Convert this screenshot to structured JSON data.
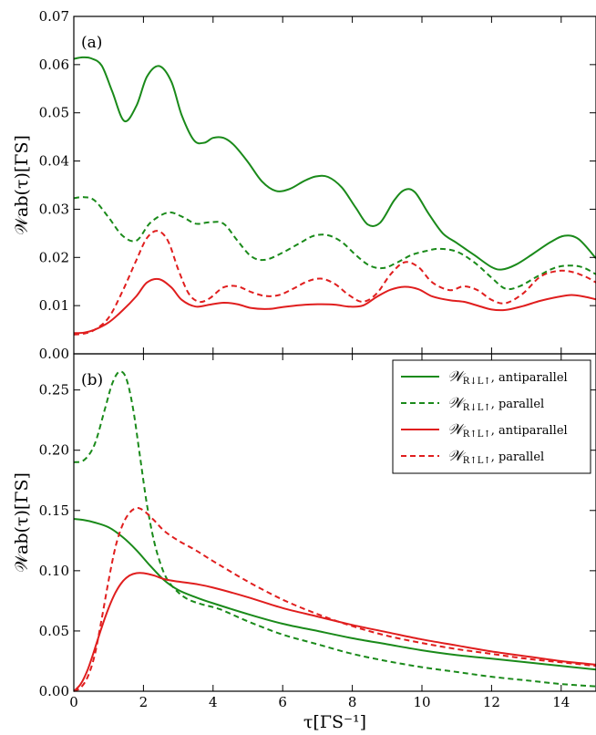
{
  "chart_data": [
    {
      "type": "line",
      "panel_label": "(a)",
      "ylabel": "𝒲ab(τ)[ΓS]",
      "xlabel": "",
      "xlim": [
        0,
        15
      ],
      "ylim": [
        0,
        0.07
      ],
      "xticks": [
        "",
        "",
        "",
        "",
        "",
        "",
        "",
        ""
      ],
      "yticks": [
        "0.00",
        "0.01",
        "0.02",
        "0.03",
        "0.04",
        "0.05",
        "0.06",
        "0.07"
      ],
      "ytick_values": [
        0,
        0.01,
        0.02,
        0.03,
        0.04,
        0.05,
        0.06,
        0.07
      ],
      "xtick_values": [
        0,
        2,
        4,
        6,
        8,
        10,
        12,
        14
      ],
      "series": [
        {
          "color": "#1a8a1a",
          "dash": "solid",
          "x": [
            0,
            0.25,
            0.5,
            0.8,
            1.1,
            1.45,
            1.8,
            2.1,
            2.45,
            2.8,
            3.1,
            3.45,
            3.75,
            4.0,
            4.3,
            4.6,
            5.0,
            5.4,
            5.8,
            6.2,
            6.6,
            6.95,
            7.3,
            7.7,
            8.1,
            8.45,
            8.8,
            9.2,
            9.5,
            9.8,
            10.2,
            10.6,
            11.0,
            11.5,
            12.0,
            12.3,
            12.7,
            13.2,
            13.7,
            14.1,
            14.5,
            15.0
          ],
          "y": [
            0.0612,
            0.0615,
            0.0613,
            0.0598,
            0.0545,
            0.0483,
            0.0515,
            0.0575,
            0.0597,
            0.0565,
            0.0495,
            0.0443,
            0.0438,
            0.0448,
            0.0448,
            0.0433,
            0.0398,
            0.0358,
            0.0338,
            0.0342,
            0.0358,
            0.0368,
            0.0367,
            0.0345,
            0.0303,
            0.0268,
            0.0272,
            0.0318,
            0.034,
            0.0335,
            0.029,
            0.025,
            0.023,
            0.0205,
            0.018,
            0.0175,
            0.0185,
            0.0208,
            0.0232,
            0.0245,
            0.0238,
            0.0198
          ]
        },
        {
          "color": "#1a8a1a",
          "dash": "dashed",
          "x": [
            0,
            0.3,
            0.6,
            1.0,
            1.4,
            1.8,
            2.2,
            2.7,
            3.1,
            3.5,
            3.9,
            4.3,
            4.7,
            5.1,
            5.5,
            6.0,
            6.5,
            6.9,
            7.3,
            7.7,
            8.1,
            8.5,
            8.9,
            9.3,
            9.7,
            10.1,
            10.5,
            11.0,
            11.5,
            12.0,
            12.4,
            12.8,
            13.3,
            13.8,
            14.2,
            14.6,
            15.0
          ],
          "y": [
            0.0323,
            0.0325,
            0.0318,
            0.0283,
            0.0245,
            0.0235,
            0.0272,
            0.0293,
            0.0285,
            0.027,
            0.0273,
            0.027,
            0.0235,
            0.0202,
            0.0195,
            0.021,
            0.023,
            0.0245,
            0.0246,
            0.0232,
            0.0205,
            0.0183,
            0.0178,
            0.019,
            0.0205,
            0.0213,
            0.0218,
            0.0212,
            0.019,
            0.0158,
            0.0135,
            0.014,
            0.016,
            0.0178,
            0.0183,
            0.018,
            0.0165
          ]
        },
        {
          "color": "#e01e1e",
          "dash": "solid",
          "x": [
            0,
            0.3,
            0.6,
            1.0,
            1.4,
            1.8,
            2.1,
            2.45,
            2.8,
            3.1,
            3.5,
            3.9,
            4.3,
            4.7,
            5.1,
            5.6,
            6.0,
            6.5,
            7.0,
            7.5,
            7.9,
            8.3,
            8.7,
            9.1,
            9.5,
            9.9,
            10.3,
            10.8,
            11.2,
            11.6,
            12.0,
            12.4,
            12.9,
            13.4,
            13.9,
            14.3,
            14.7,
            15.0
          ],
          "y": [
            0.0043,
            0.0044,
            0.005,
            0.0065,
            0.009,
            0.012,
            0.0148,
            0.0155,
            0.0138,
            0.0112,
            0.0098,
            0.0102,
            0.0106,
            0.0103,
            0.0095,
            0.0093,
            0.0097,
            0.0101,
            0.0103,
            0.0102,
            0.0098,
            0.01,
            0.0118,
            0.0133,
            0.0139,
            0.0134,
            0.0119,
            0.0111,
            0.0108,
            0.01,
            0.0092,
            0.0091,
            0.0099,
            0.011,
            0.0118,
            0.0122,
            0.0118,
            0.0113
          ]
        },
        {
          "color": "#e01e1e",
          "dash": "dashed",
          "x": [
            0,
            0.3,
            0.6,
            1.0,
            1.4,
            1.8,
            2.1,
            2.4,
            2.7,
            3.0,
            3.3,
            3.6,
            3.9,
            4.3,
            4.7,
            5.1,
            5.5,
            5.9,
            6.3,
            6.7,
            7.1,
            7.5,
            7.9,
            8.3,
            8.7,
            9.1,
            9.5,
            9.9,
            10.3,
            10.8,
            11.2,
            11.6,
            12.0,
            12.4,
            12.9,
            13.4,
            13.9,
            14.3,
            14.7,
            15.0
          ],
          "y": [
            0.004,
            0.0042,
            0.005,
            0.0075,
            0.013,
            0.0195,
            0.024,
            0.0255,
            0.0235,
            0.0175,
            0.0125,
            0.0108,
            0.0115,
            0.0138,
            0.014,
            0.0128,
            0.012,
            0.0122,
            0.0135,
            0.015,
            0.0156,
            0.0145,
            0.0122,
            0.0108,
            0.0125,
            0.0165,
            0.019,
            0.018,
            0.0148,
            0.0132,
            0.014,
            0.0132,
            0.0112,
            0.0105,
            0.0125,
            0.016,
            0.0172,
            0.017,
            0.016,
            0.0148
          ]
        }
      ]
    },
    {
      "type": "line",
      "panel_label": "(b)",
      "ylabel": "𝒲ab(τ)[ΓS]",
      "xlabel": "τ[ΓS⁻¹]",
      "xlim": [
        0,
        15
      ],
      "ylim": [
        0,
        0.28
      ],
      "xticks": [
        "0",
        "2",
        "4",
        "6",
        "8",
        "10",
        "12",
        "14"
      ],
      "xtick_values": [
        0,
        2,
        4,
        6,
        8,
        10,
        12,
        14
      ],
      "yticks": [
        "0.00",
        "0.05",
        "0.10",
        "0.15",
        "0.20",
        "0.25"
      ],
      "ytick_values": [
        0,
        0.05,
        0.1,
        0.15,
        0.2,
        0.25
      ],
      "legend": {
        "placement": "top-right",
        "entries": [
          {
            "main": "𝒲",
            "sub": "R↓L↑",
            "text": ", antiparallel"
          },
          {
            "main": "𝒲",
            "sub": "R↓L↑",
            "text": ", parallel"
          },
          {
            "main": "𝒲",
            "sub": "R↑L↑",
            "text": ", antiparallel"
          },
          {
            "main": "𝒲",
            "sub": "R↑L↑",
            "text": ", parallel"
          }
        ]
      },
      "series": [
        {
          "color": "#1a8a1a",
          "dash": "solid",
          "x": [
            0,
            0.3,
            0.6,
            1.0,
            1.4,
            1.8,
            2.2,
            2.6,
            3.0,
            3.5,
            4.0,
            5.0,
            6.0,
            7.0,
            8.0,
            9.0,
            10.0,
            11.0,
            12.0,
            13.0,
            14.0,
            15.0
          ],
          "y": [
            0.143,
            0.142,
            0.14,
            0.136,
            0.128,
            0.117,
            0.104,
            0.092,
            0.084,
            0.078,
            0.073,
            0.064,
            0.056,
            0.05,
            0.044,
            0.039,
            0.034,
            0.03,
            0.027,
            0.024,
            0.021,
            0.018
          ]
        },
        {
          "color": "#1a8a1a",
          "dash": "dashed",
          "x": [
            0,
            0.3,
            0.6,
            0.9,
            1.1,
            1.3,
            1.5,
            1.7,
            1.9,
            2.1,
            2.3,
            2.5,
            2.7,
            3.0,
            3.3,
            3.7,
            4.2,
            5.0,
            6.0,
            7.0,
            8.0,
            9.0,
            10.0,
            11.0,
            12.0,
            13.0,
            14.0,
            15.0
          ],
          "y": [
            0.19,
            0.192,
            0.205,
            0.235,
            0.255,
            0.265,
            0.26,
            0.235,
            0.195,
            0.155,
            0.125,
            0.105,
            0.092,
            0.082,
            0.076,
            0.072,
            0.068,
            0.058,
            0.047,
            0.039,
            0.031,
            0.025,
            0.02,
            0.016,
            0.012,
            0.009,
            0.006,
            0.004
          ]
        },
        {
          "color": "#e01e1e",
          "dash": "solid",
          "x": [
            0,
            0.2,
            0.4,
            0.6,
            0.8,
            1.0,
            1.2,
            1.4,
            1.6,
            1.8,
            2.0,
            2.3,
            2.6,
            3.0,
            3.5,
            4.0,
            5.0,
            6.0,
            7.0,
            8.0,
            9.0,
            10.0,
            11.0,
            12.0,
            13.0,
            14.0,
            15.0
          ],
          "y": [
            0.0,
            0.006,
            0.018,
            0.035,
            0.053,
            0.069,
            0.082,
            0.091,
            0.096,
            0.098,
            0.098,
            0.096,
            0.093,
            0.091,
            0.089,
            0.086,
            0.078,
            0.069,
            0.062,
            0.055,
            0.049,
            0.043,
            0.038,
            0.033,
            0.029,
            0.025,
            0.022
          ]
        },
        {
          "color": "#e01e1e",
          "dash": "dashed",
          "x": [
            0,
            0.2,
            0.4,
            0.6,
            0.8,
            1.0,
            1.2,
            1.4,
            1.6,
            1.8,
            2.0,
            2.3,
            2.6,
            3.0,
            3.5,
            4.0,
            5.0,
            6.0,
            7.0,
            8.0,
            9.0,
            10.0,
            11.0,
            12.0,
            13.0,
            14.0,
            15.0
          ],
          "y": [
            0.0,
            0.003,
            0.012,
            0.03,
            0.06,
            0.092,
            0.12,
            0.138,
            0.148,
            0.152,
            0.15,
            0.142,
            0.133,
            0.125,
            0.117,
            0.108,
            0.091,
            0.076,
            0.064,
            0.054,
            0.046,
            0.04,
            0.035,
            0.031,
            0.027,
            0.024,
            0.021
          ]
        }
      ]
    }
  ]
}
